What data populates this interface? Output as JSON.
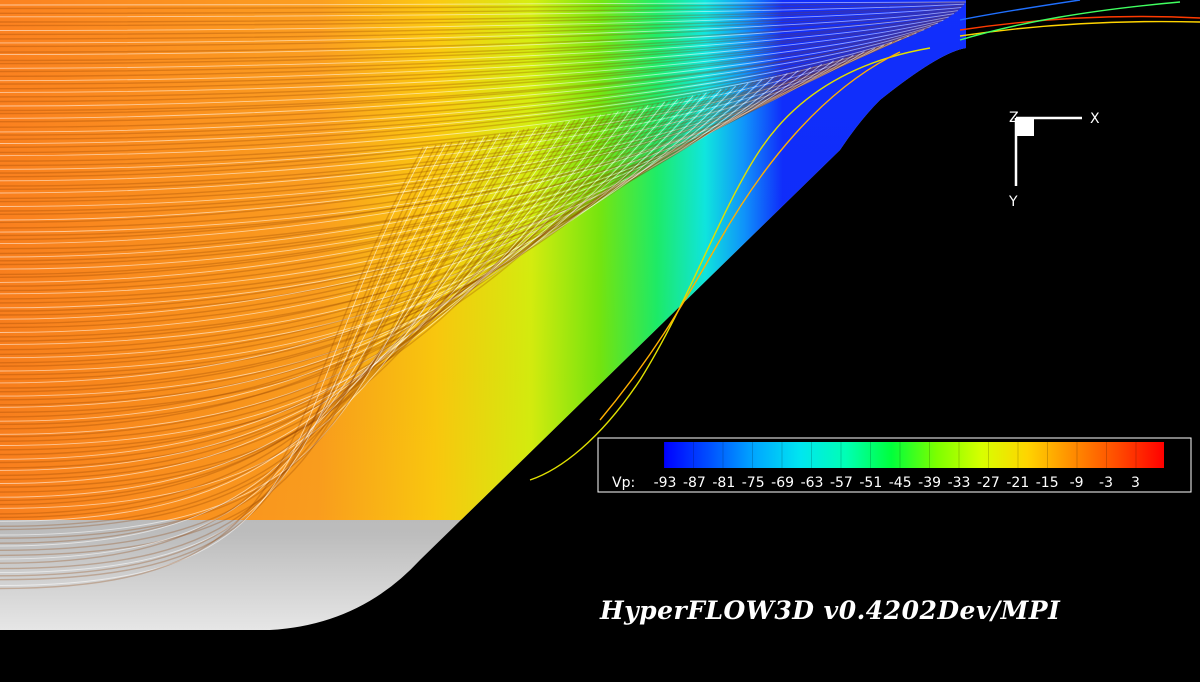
{
  "axes": {
    "x_label": "X",
    "y_label": "Y",
    "z_label": "Z"
  },
  "legend": {
    "variable_label": "Vp:",
    "ticks": [
      "-93",
      "-87",
      "-81",
      "-75",
      "-69",
      "-63",
      "-57",
      "-51",
      "-45",
      "-39",
      "-33",
      "-27",
      "-21",
      "-15",
      "-9",
      "-3",
      "3"
    ],
    "colors": [
      "#0000ff",
      "#0050ff",
      "#00a8ff",
      "#00e6f0",
      "#00ffb4",
      "#00ff3c",
      "#7cff00",
      "#d8ff00",
      "#ffd400",
      "#ff8c00",
      "#ff4a00",
      "#ff0000"
    ]
  },
  "watermark": "HyperFLOW3D v0.4202Dev/MPI"
}
